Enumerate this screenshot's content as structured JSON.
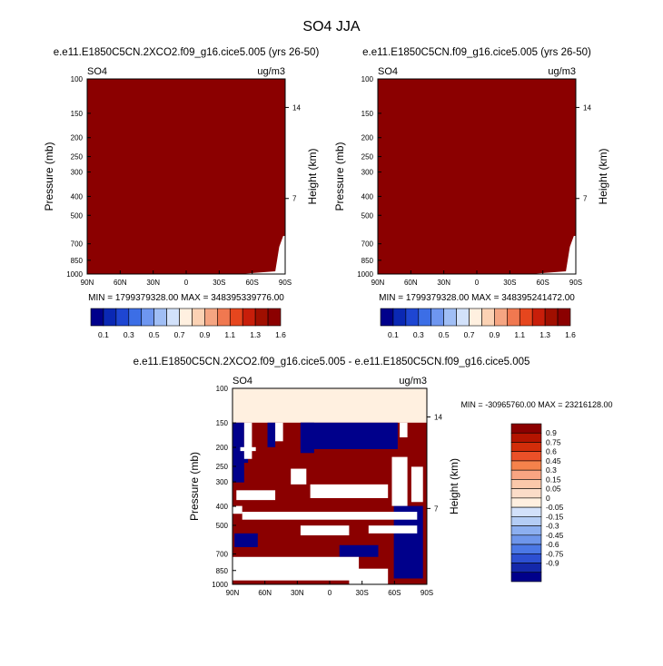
{
  "figure": {
    "title": "SO4 JJA"
  },
  "colors": {
    "positive": "#8b0000",
    "negative": "#00008b",
    "neutral": "#fff0e0",
    "blank": "#ffffff"
  },
  "chart_data": [
    {
      "type": "heatmap",
      "title": "e.e11.E1850C5CN.2XCO2.f09_g16.cice5.005 (yrs 26-50)",
      "field_label": "SO4",
      "units_label": "ug/m3",
      "ylabel": "Pressure (mb)",
      "right_ylabel": "Height (km)",
      "x_ticks": [
        "90N",
        "60N",
        "30N",
        "0",
        "30S",
        "60S",
        "90S"
      ],
      "y_ticks": [
        "100",
        "150",
        "200",
        "250",
        "300",
        "400",
        "500",
        "700",
        "850",
        "1000"
      ],
      "right_ticks": [
        "14",
        "7"
      ],
      "stats": "MIN = 1799379328.00   MAX = 348395339776.00",
      "colorbar": {
        "colors": [
          "#00008b",
          "#0a28b4",
          "#1e46d2",
          "#3c6ee6",
          "#6e96f0",
          "#a0bef5",
          "#d2e1fa",
          "#fff0e0",
          "#fbd2b4",
          "#f5a582",
          "#f07850",
          "#e6461e",
          "#c81e0a",
          "#a00f00",
          "#8b0000"
        ],
        "labels": [
          "0.1",
          "0.3",
          "0.5",
          "0.7",
          "0.9",
          "1.1",
          "1.3",
          "1.6"
        ]
      }
    },
    {
      "type": "heatmap",
      "title": "e.e11.E1850C5CN.f09_g16.cice5.005 (yrs 26-50)",
      "field_label": "SO4",
      "units_label": "ug/m3",
      "ylabel": "Pressure (mb)",
      "right_ylabel": "Height (km)",
      "x_ticks": [
        "90N",
        "60N",
        "30N",
        "0",
        "30S",
        "60S",
        "90S"
      ],
      "y_ticks": [
        "100",
        "150",
        "200",
        "250",
        "300",
        "400",
        "500",
        "700",
        "850",
        "1000"
      ],
      "right_ticks": [
        "14",
        "7"
      ],
      "stats": "MIN = 1799379328.00   MAX = 348395241472.00",
      "colorbar": {
        "colors": [
          "#00008b",
          "#0a28b4",
          "#1e46d2",
          "#3c6ee6",
          "#6e96f0",
          "#a0bef5",
          "#d2e1fa",
          "#fff0e0",
          "#fbd2b4",
          "#f5a582",
          "#f07850",
          "#e6461e",
          "#c81e0a",
          "#a00f00",
          "#8b0000"
        ],
        "labels": [
          "0.1",
          "0.3",
          "0.5",
          "0.7",
          "0.9",
          "1.1",
          "1.3",
          "1.6"
        ]
      }
    },
    {
      "type": "heatmap",
      "title": "e.e11.E1850C5CN.2XCO2.f09_g16.cice5.005 - e.e11.E1850C5CN.f09_g16.cice5.005",
      "field_label": "SO4",
      "units_label": "ug/m3",
      "ylabel": "Pressure (mb)",
      "right_ylabel": "Height (km)",
      "x_ticks": [
        "90N",
        "60N",
        "30N",
        "0",
        "30S",
        "60S",
        "90S"
      ],
      "y_ticks": [
        "100",
        "150",
        "200",
        "250",
        "300",
        "400",
        "500",
        "700",
        "850",
        "1000"
      ],
      "right_ticks": [
        "14",
        "7"
      ],
      "stats": "MIN = -30965760.00   MAX = 23216128.00",
      "colorbar": {
        "colors": [
          "#8b0000",
          "#b41400",
          "#d22d0a",
          "#eb5028",
          "#f5824b",
          "#f9a582",
          "#fbc8aa",
          "#fbdcc8",
          "#fff0e0",
          "#d2e1fa",
          "#b4cdf5",
          "#8caff0",
          "#6e96eb",
          "#4b78e6",
          "#2d50d2",
          "#1428aa",
          "#00008b"
        ],
        "labels": [
          "0.9",
          "0.75",
          "0.6",
          "0.45",
          "0.3",
          "0.15",
          "0.05",
          "0",
          "-0.05",
          "-0.15",
          "-0.3",
          "-0.45",
          "-0.6",
          "-0.75",
          "-0.9"
        ]
      }
    }
  ]
}
